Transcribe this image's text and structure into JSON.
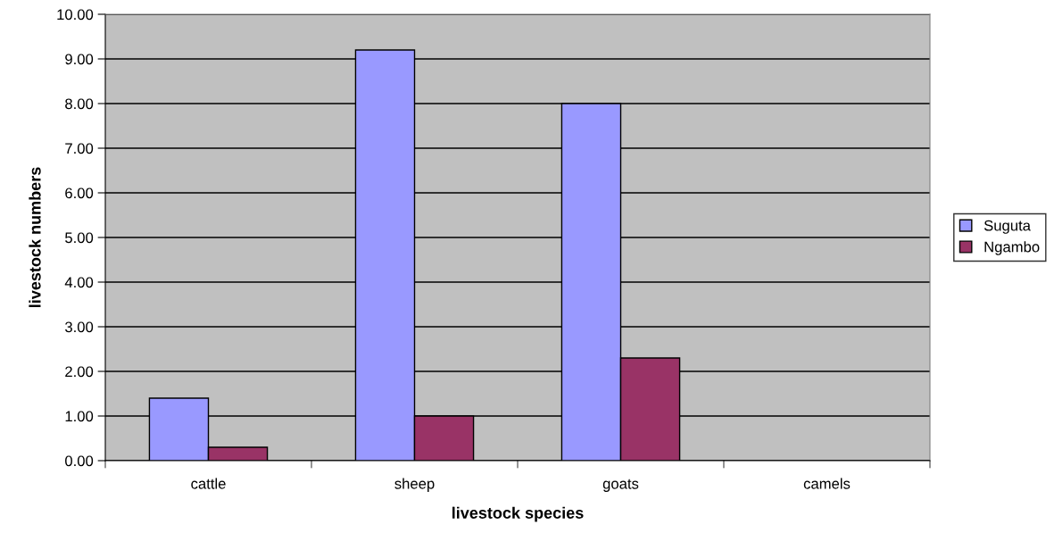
{
  "chart_data": {
    "type": "bar",
    "xlabel": "livestock species",
    "ylabel": "livestock numbers",
    "categories": [
      "cattle",
      "sheep",
      "goats",
      "camels"
    ],
    "series": [
      {
        "name": "Suguta",
        "color": "#9999ff",
        "values": [
          1.4,
          9.2,
          8.0,
          0
        ]
      },
      {
        "name": "Ngambo",
        "color": "#993366",
        "values": [
          0.3,
          1.0,
          2.3,
          0
        ]
      }
    ],
    "ylim": [
      0,
      10
    ],
    "yticks": [
      {
        "value": 0,
        "label": "0.00"
      },
      {
        "value": 1,
        "label": "1.00"
      },
      {
        "value": 2,
        "label": "2.00"
      },
      {
        "value": 3,
        "label": "3.00"
      },
      {
        "value": 4,
        "label": "4.00"
      },
      {
        "value": 5,
        "label": "5.00"
      },
      {
        "value": 6,
        "label": "6.00"
      },
      {
        "value": 7,
        "label": "7.00"
      },
      {
        "value": 8,
        "label": "8.00"
      },
      {
        "value": 9,
        "label": "9.00"
      },
      {
        "value": 10,
        "label": "10.00"
      }
    ],
    "grid": "y",
    "legend": "right"
  }
}
